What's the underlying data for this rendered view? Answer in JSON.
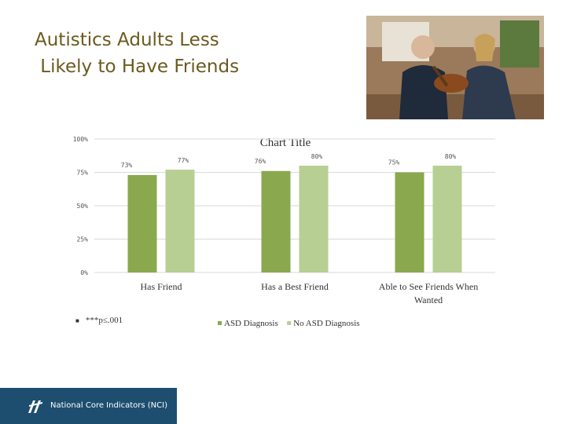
{
  "slide": {
    "title_lines": [
      "Autistics Adults Less",
      " Likely to Have Friends"
    ],
    "footnote": "***p≤.001",
    "footer_label": "National Core Indicators (NCI)"
  },
  "photo": {
    "description_icon": "photo-two-men-guitar"
  },
  "chart_data": {
    "type": "bar",
    "title": "Chart Title",
    "categories": [
      "Has Friend",
      "Has a Best Friend",
      "Able to See Friends When Wanted"
    ],
    "series": [
      {
        "name": "ASD Diagnosis",
        "values": [
          73,
          76,
          75
        ],
        "labels": [
          "73%",
          "76%",
          "75%"
        ],
        "color": "#8aa84e"
      },
      {
        "name": "No ASD Diagnosis",
        "values": [
          77,
          80,
          80
        ],
        "labels": [
          "77%",
          "80%",
          "80%"
        ],
        "color": "#b7cf93"
      }
    ],
    "yticks": [
      "0%",
      "25%",
      "50%",
      "75%",
      "100%"
    ],
    "ylim": [
      0,
      100
    ],
    "grid": true,
    "legend": "bottom-center"
  }
}
